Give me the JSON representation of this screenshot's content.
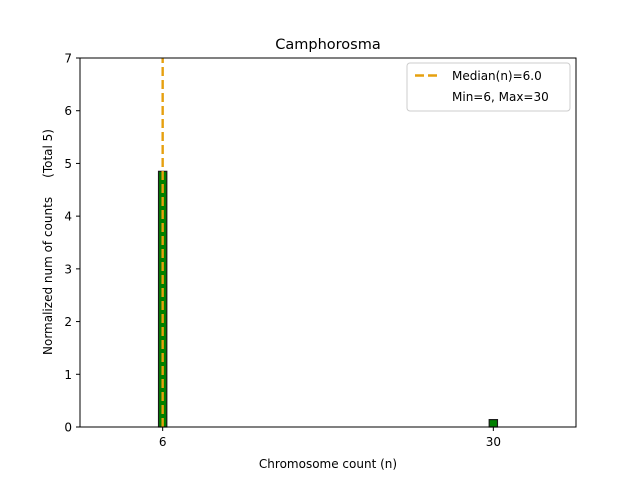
{
  "chart_data": {
    "type": "bar",
    "title": "Camphorosma",
    "xlabel": "Chromosome count (n)",
    "ylabel": "Normalized num of counts     (Total 5)",
    "xlim": [
      0,
      36
    ],
    "ylim": [
      0,
      7
    ],
    "x_ticks": [
      {
        "value": 6,
        "label": "6"
      },
      {
        "value": 30,
        "label": "30"
      }
    ],
    "y_ticks": [
      {
        "value": 0,
        "label": "0"
      },
      {
        "value": 1,
        "label": "1"
      },
      {
        "value": 2,
        "label": "2"
      },
      {
        "value": 3,
        "label": "3"
      },
      {
        "value": 4,
        "label": "4"
      },
      {
        "value": 5,
        "label": "5"
      },
      {
        "value": 6,
        "label": "6"
      },
      {
        "value": 7,
        "label": "7"
      }
    ],
    "bars": [
      {
        "x": 6,
        "value": 4.85
      },
      {
        "x": 30,
        "value": 0.14
      }
    ],
    "bar_width": 0.6,
    "bar_color": "#008000",
    "bar_edge_color": "#1a1a1a",
    "median_line": {
      "x": 6,
      "color": "#e6a00f"
    },
    "legend": {
      "position": "top-right",
      "entries": [
        {
          "label": "Median(n)=6.0",
          "style": "dashed",
          "color": "#e6a00f"
        },
        {
          "label": "Min=6, Max=30",
          "style": "none"
        }
      ]
    }
  }
}
